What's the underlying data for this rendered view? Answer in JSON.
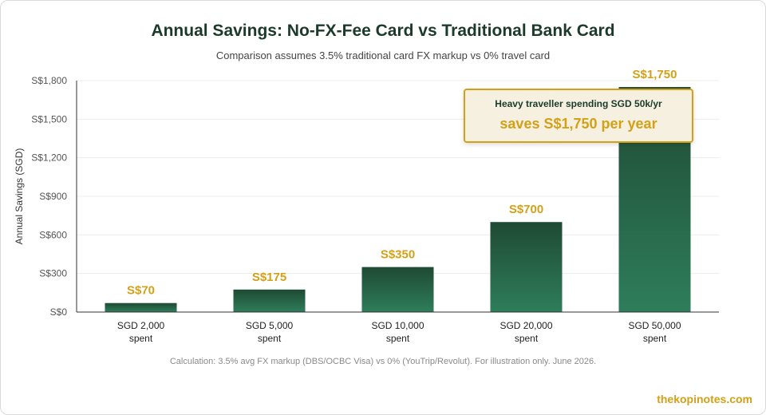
{
  "title": "Annual Savings: No-FX-Fee Card vs Traditional Bank Card",
  "subtitle": "Comparison assumes 3.5% traditional card FX markup vs 0% travel card",
  "footnote": "Calculation: 3.5% avg FX markup (DBS/OCBC Visa) vs 0% (YouTrip/Revolut). For illustration only. June 2026.",
  "brand": "thekopinotes.com",
  "callout": {
    "line1": "Heavy traveller spending SGD 50k/yr",
    "line2": "saves S$1,750 per year"
  },
  "colors": {
    "bar_top": "#1f4a33",
    "bar_bottom": "#2e7d5b",
    "data_label": "#d4a017",
    "title": "#1b3a2b"
  },
  "chart_data": {
    "type": "bar",
    "categories": [
      [
        "SGD 2,000",
        "spent"
      ],
      [
        "SGD 5,000",
        "spent"
      ],
      [
        "SGD 10,000",
        "spent"
      ],
      [
        "SGD 20,000",
        "spent"
      ],
      [
        "SGD 50,000",
        "spent"
      ]
    ],
    "values": [
      70,
      175,
      350,
      700,
      1750
    ],
    "data_labels": [
      "S$70",
      "S$175",
      "S$350",
      "S$700",
      "S$1,750"
    ],
    "ylabel": "Annual Savings (SGD)",
    "ylim": [
      0,
      1800
    ],
    "yticks": [
      0,
      300,
      600,
      900,
      1200,
      1500,
      1800
    ],
    "ytick_labels": [
      "S$0",
      "S$300",
      "S$600",
      "S$900",
      "S$1,200",
      "S$1,500",
      "S$1,800"
    ],
    "grid": true,
    "legend": "none"
  }
}
